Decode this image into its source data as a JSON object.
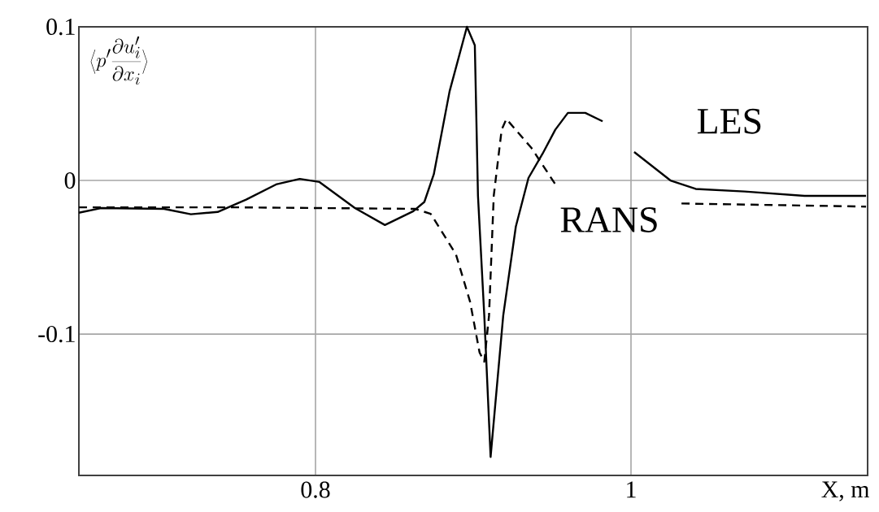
{
  "chart_data": {
    "type": "line",
    "ylabel": "\\left\\langle p'\\frac{\\partial u'_i}{\\partial x_i}\\right\\rangle",
    "xlabel": "X, m",
    "xlim": [
      0.65,
      1.15
    ],
    "ylim": [
      -0.192,
      0.1
    ],
    "xticks": [
      0.8,
      1
    ],
    "yticks": [
      -0.1,
      0,
      0.1
    ],
    "grid": true,
    "series": [
      {
        "name": "LES",
        "color": "#000000",
        "line_style": "solid",
        "x": [
          0.65,
          0.664,
          0.704,
          0.721,
          0.738,
          0.756,
          0.775,
          0.79,
          0.8025,
          0.825,
          0.844,
          0.862,
          0.869,
          0.875,
          0.885,
          0.896,
          0.901,
          0.903,
          0.907,
          0.911,
          0.919,
          0.927,
          0.935,
          0.944,
          0.952,
          0.96,
          0.971,
          0.982,
          0.992,
          1.002,
          1.025,
          1.041,
          1.072,
          1.11,
          1.149
        ],
        "values": [
          -0.021,
          -0.018,
          -0.0185,
          -0.022,
          -0.0205,
          -0.0125,
          -0.0026,
          0.001,
          -0.001,
          -0.018,
          -0.029,
          -0.02,
          -0.014,
          0.004,
          0.058,
          0.1,
          0.088,
          -0.01,
          -0.088,
          -0.18,
          -0.088,
          -0.03,
          0.0016,
          0.0175,
          0.033,
          0.044,
          0.044,
          0.0385,
          null,
          0.0185,
          0,
          -0.0055,
          -0.0072,
          -0.01,
          -0.01
        ]
      },
      {
        "name": "RANS",
        "color": "#000000",
        "line_style": "dashed",
        "x": [
          0.65,
          0.75,
          0.863,
          0.873,
          0.889,
          0.898,
          0.904,
          0.907,
          0.91,
          0.913,
          0.918,
          0.921,
          0.937,
          0.953,
          0.99,
          1.032,
          1.149
        ],
        "values": [
          -0.0175,
          -0.0175,
          -0.0185,
          -0.0217,
          -0.048,
          -0.079,
          -0.112,
          -0.118,
          -0.088,
          -0.01,
          0.033,
          0.04,
          0.021,
          -0.004,
          null,
          -0.015,
          -0.017
        ]
      }
    ]
  }
}
